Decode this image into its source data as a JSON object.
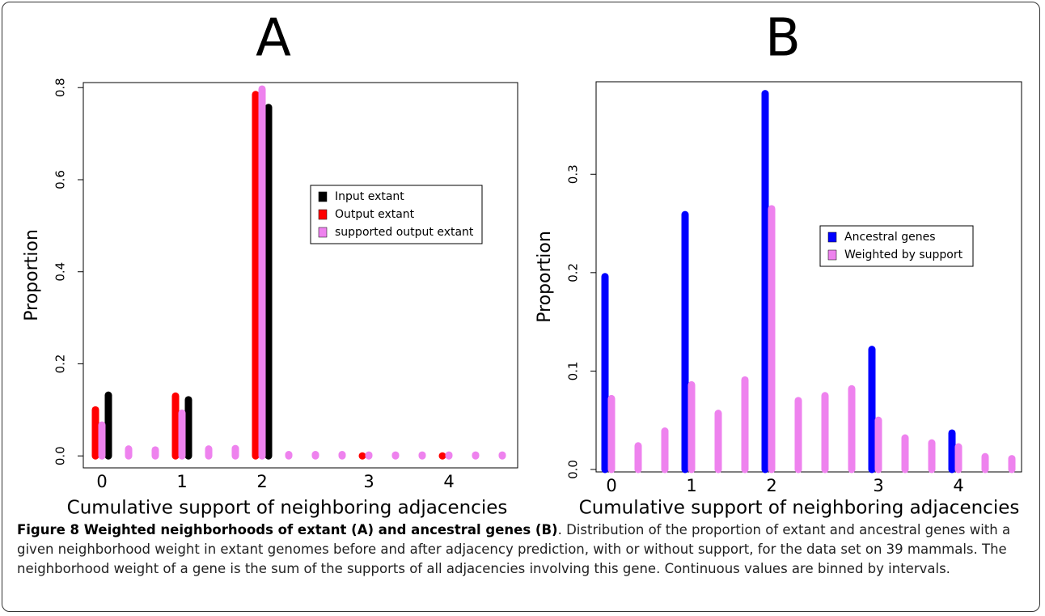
{
  "chart_data": [
    {
      "type": "bar",
      "title": "A",
      "y_label": "Proportion",
      "x_label": "Cumulative support of neighboring adjacencies",
      "categories": [
        "0",
        null,
        null,
        "1",
        null,
        null,
        "2",
        null,
        null,
        null,
        "3",
        null,
        null,
        "4",
        null,
        null
      ],
      "series": [
        {
          "name": "Input extant",
          "color": "#000000",
          "values": [
            0.132,
            null,
            null,
            0.122,
            null,
            null,
            0.757,
            null,
            null,
            null,
            null,
            null,
            null,
            null,
            null,
            null
          ]
        },
        {
          "name": "Output extant",
          "color": "#ff0000",
          "values": [
            0.1,
            null,
            null,
            0.13,
            null,
            null,
            0.785,
            null,
            null,
            null,
            0,
            null,
            null,
            0,
            null,
            null
          ]
        },
        {
          "name": "supported output extant",
          "color": "#ee82ee",
          "values": [
            0.067,
            0.015,
            0.013,
            0.093,
            0.015,
            0.016,
            0.797,
            0.003,
            0.003,
            0.003,
            0.002,
            0.002,
            0.002,
            0.002,
            0.002,
            0.002
          ]
        }
      ],
      "ylim": [
        -0.026,
        0.811
      ],
      "yticks": [
        {
          "value": 0,
          "label": "0.0"
        },
        0.2,
        0.4,
        0.6,
        0.8
      ]
    },
    {
      "type": "bar",
      "title": "B",
      "y_label": "Proportion",
      "x_label": "Cumulative support of neighboring adjacencies",
      "categories": [
        "0",
        null,
        null,
        "1",
        null,
        null,
        "2",
        null,
        null,
        null,
        "3",
        null,
        null,
        "4",
        null,
        null
      ],
      "series": [
        {
          "name": "Ancestral genes",
          "color": "#0000ff",
          "values": [
            0.196,
            null,
            null,
            0.259,
            null,
            null,
            0.382,
            null,
            null,
            null,
            0.122,
            null,
            null,
            0.037,
            null,
            null
          ]
        },
        {
          "name": "Weighted by support",
          "color": "#ee82ee",
          "values": [
            0.072,
            0.024,
            0.039,
            0.086,
            0.057,
            0.091,
            0.265,
            0.07,
            0.075,
            0.082,
            0.05,
            0.032,
            0.027,
            0.023,
            0.013,
            0.011
          ]
        }
      ],
      "ylim": [
        -0.0025,
        0.394
      ],
      "yticks": [
        {
          "value": 0,
          "label": "0.0"
        },
        0.1,
        0.2,
        0.3
      ]
    }
  ],
  "caption": {
    "title": "Figure 8 Weighted neighborhoods of extant (A) and ancestral genes (B)",
    "text": ". Distribution of the proportion of extant and ancestral genes with a given neighborhood weight in extant genomes before and after adjacency prediction, with or without support, for the data set on 39 mammals. The neighborhood weight of a gene is the sum of the supports of all adjacencies involving this gene. Continuous values are binned by intervals."
  }
}
